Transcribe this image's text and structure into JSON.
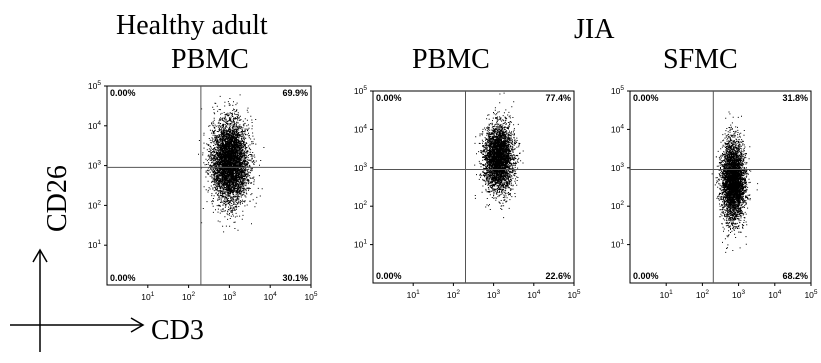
{
  "headings": {
    "healthy_line1": "Healthy adult",
    "jia": "JIA",
    "healthy_pbmc": "PBMC",
    "jia_pbmc": "PBMC",
    "jia_sfmc": "SFMC"
  },
  "axes": {
    "x_title": "CD3",
    "y_title": "CD26"
  },
  "chart_data": [
    {
      "type": "scatter",
      "group": "Healthy adult",
      "sample": "PBMC",
      "xlabel": "CD3",
      "ylabel": "CD26",
      "xscale": "log",
      "yscale": "log",
      "xlim": [
        1,
        100000
      ],
      "ylim": [
        1,
        100000
      ],
      "x_ticks": [
        "10^1",
        "10^2",
        "10^3",
        "10^4",
        "10^5"
      ],
      "y_ticks": [
        "10^1",
        "10^2",
        "10^3",
        "10^4",
        "10^5"
      ],
      "gate": {
        "x": 200,
        "y": 900
      },
      "quadrants": {
        "upper_left": "0.00%",
        "upper_right": "69.9%",
        "lower_left": "0.00%",
        "lower_right": "30.1%"
      },
      "population": {
        "center_x": 1000,
        "center_y": 1300,
        "spread_x": 0.22,
        "spread_y": 0.5,
        "events": 5200
      }
    },
    {
      "type": "scatter",
      "group": "JIA",
      "sample": "PBMC",
      "xlabel": "CD3",
      "ylabel": "CD26",
      "xscale": "log",
      "yscale": "log",
      "xlim": [
        1,
        100000
      ],
      "ylim": [
        1,
        100000
      ],
      "x_ticks": [
        "10^1",
        "10^2",
        "10^3",
        "10^4",
        "10^5"
      ],
      "y_ticks": [
        "10^1",
        "10^2",
        "10^3",
        "10^4",
        "10^5"
      ],
      "gate": {
        "x": 200,
        "y": 900
      },
      "quadrants": {
        "upper_left": "0.00%",
        "upper_right": "77.4%",
        "lower_left": "0.00%",
        "lower_right": "22.6%"
      },
      "population": {
        "center_x": 1300,
        "center_y": 1800,
        "spread_x": 0.18,
        "spread_y": 0.42,
        "events": 3800
      }
    },
    {
      "type": "scatter",
      "group": "JIA",
      "sample": "SFMC",
      "xlabel": "CD3",
      "ylabel": "CD26",
      "xscale": "log",
      "yscale": "log",
      "xlim": [
        1,
        100000
      ],
      "ylim": [
        1,
        100000
      ],
      "x_ticks": [
        "10^1",
        "10^2",
        "10^3",
        "10^4",
        "10^5"
      ],
      "y_ticks": [
        "10^1",
        "10^2",
        "10^3",
        "10^4",
        "10^5"
      ],
      "gate": {
        "x": 200,
        "y": 900
      },
      "quadrants": {
        "upper_left": "0.00%",
        "upper_right": "31.8%",
        "lower_left": "0.00%",
        "lower_right": "68.2%"
      },
      "population": {
        "center_x": 700,
        "center_y": 450,
        "spread_x": 0.16,
        "spread_y": 0.52,
        "events": 4200
      }
    }
  ]
}
